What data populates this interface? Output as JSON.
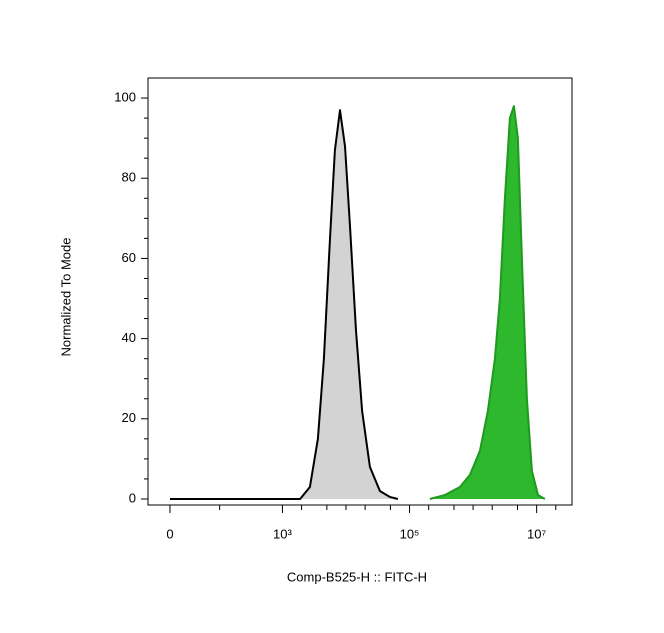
{
  "chart_data": {
    "type": "histogram-overlay",
    "x_label": "Comp-B525-H :: FITC-H",
    "y_label": "Normalized To Mode",
    "xscale": "biex",
    "xlim": [
      -30,
      36000000
    ],
    "ylim": [
      -1.5,
      105
    ],
    "xticks": [
      0,
      {
        "value": 1000,
        "label": "10³"
      },
      {
        "value": 100000,
        "label": "10⁵"
      },
      {
        "value": 10000000,
        "label": "10⁷"
      }
    ],
    "xminorticks": [
      100,
      2000,
      5000,
      10000,
      20000,
      50000,
      200000,
      500000,
      1000000,
      2000000,
      5000000,
      20000000
    ],
    "yticks": [
      0,
      20,
      40,
      60,
      80,
      100
    ],
    "yminorticks": [
      5,
      10,
      15,
      25,
      30,
      35,
      45,
      50,
      55,
      65,
      70,
      75,
      85,
      90,
      95
    ],
    "series": [
      {
        "color": "#d3d3d3",
        "stroke": "#000000",
        "x": [
          0,
          1900,
          2710,
          3620,
          4500,
          5600,
          6700,
          8050,
          9650,
          11560,
          14400,
          17900,
          23800,
          34200,
          49200,
          65500
        ],
        "values": [
          0,
          0,
          3,
          15,
          35,
          65,
          87,
          97,
          88,
          68,
          42,
          22,
          8,
          2,
          0.5,
          0
        ]
      },
      {
        "color": "#2db82d",
        "stroke": "#1f9a1f",
        "x": [
          209000,
          360000,
          619000,
          891000,
          1280000,
          1710000,
          2200000,
          2640000,
          3170000,
          3790000,
          4390000,
          5070000,
          5870000,
          7030000,
          8430000,
          10500000,
          13500000
        ],
        "values": [
          0,
          1,
          3,
          6,
          12,
          22,
          35,
          50,
          75,
          95,
          98,
          90,
          60,
          25,
          7,
          1,
          0
        ]
      }
    ]
  }
}
